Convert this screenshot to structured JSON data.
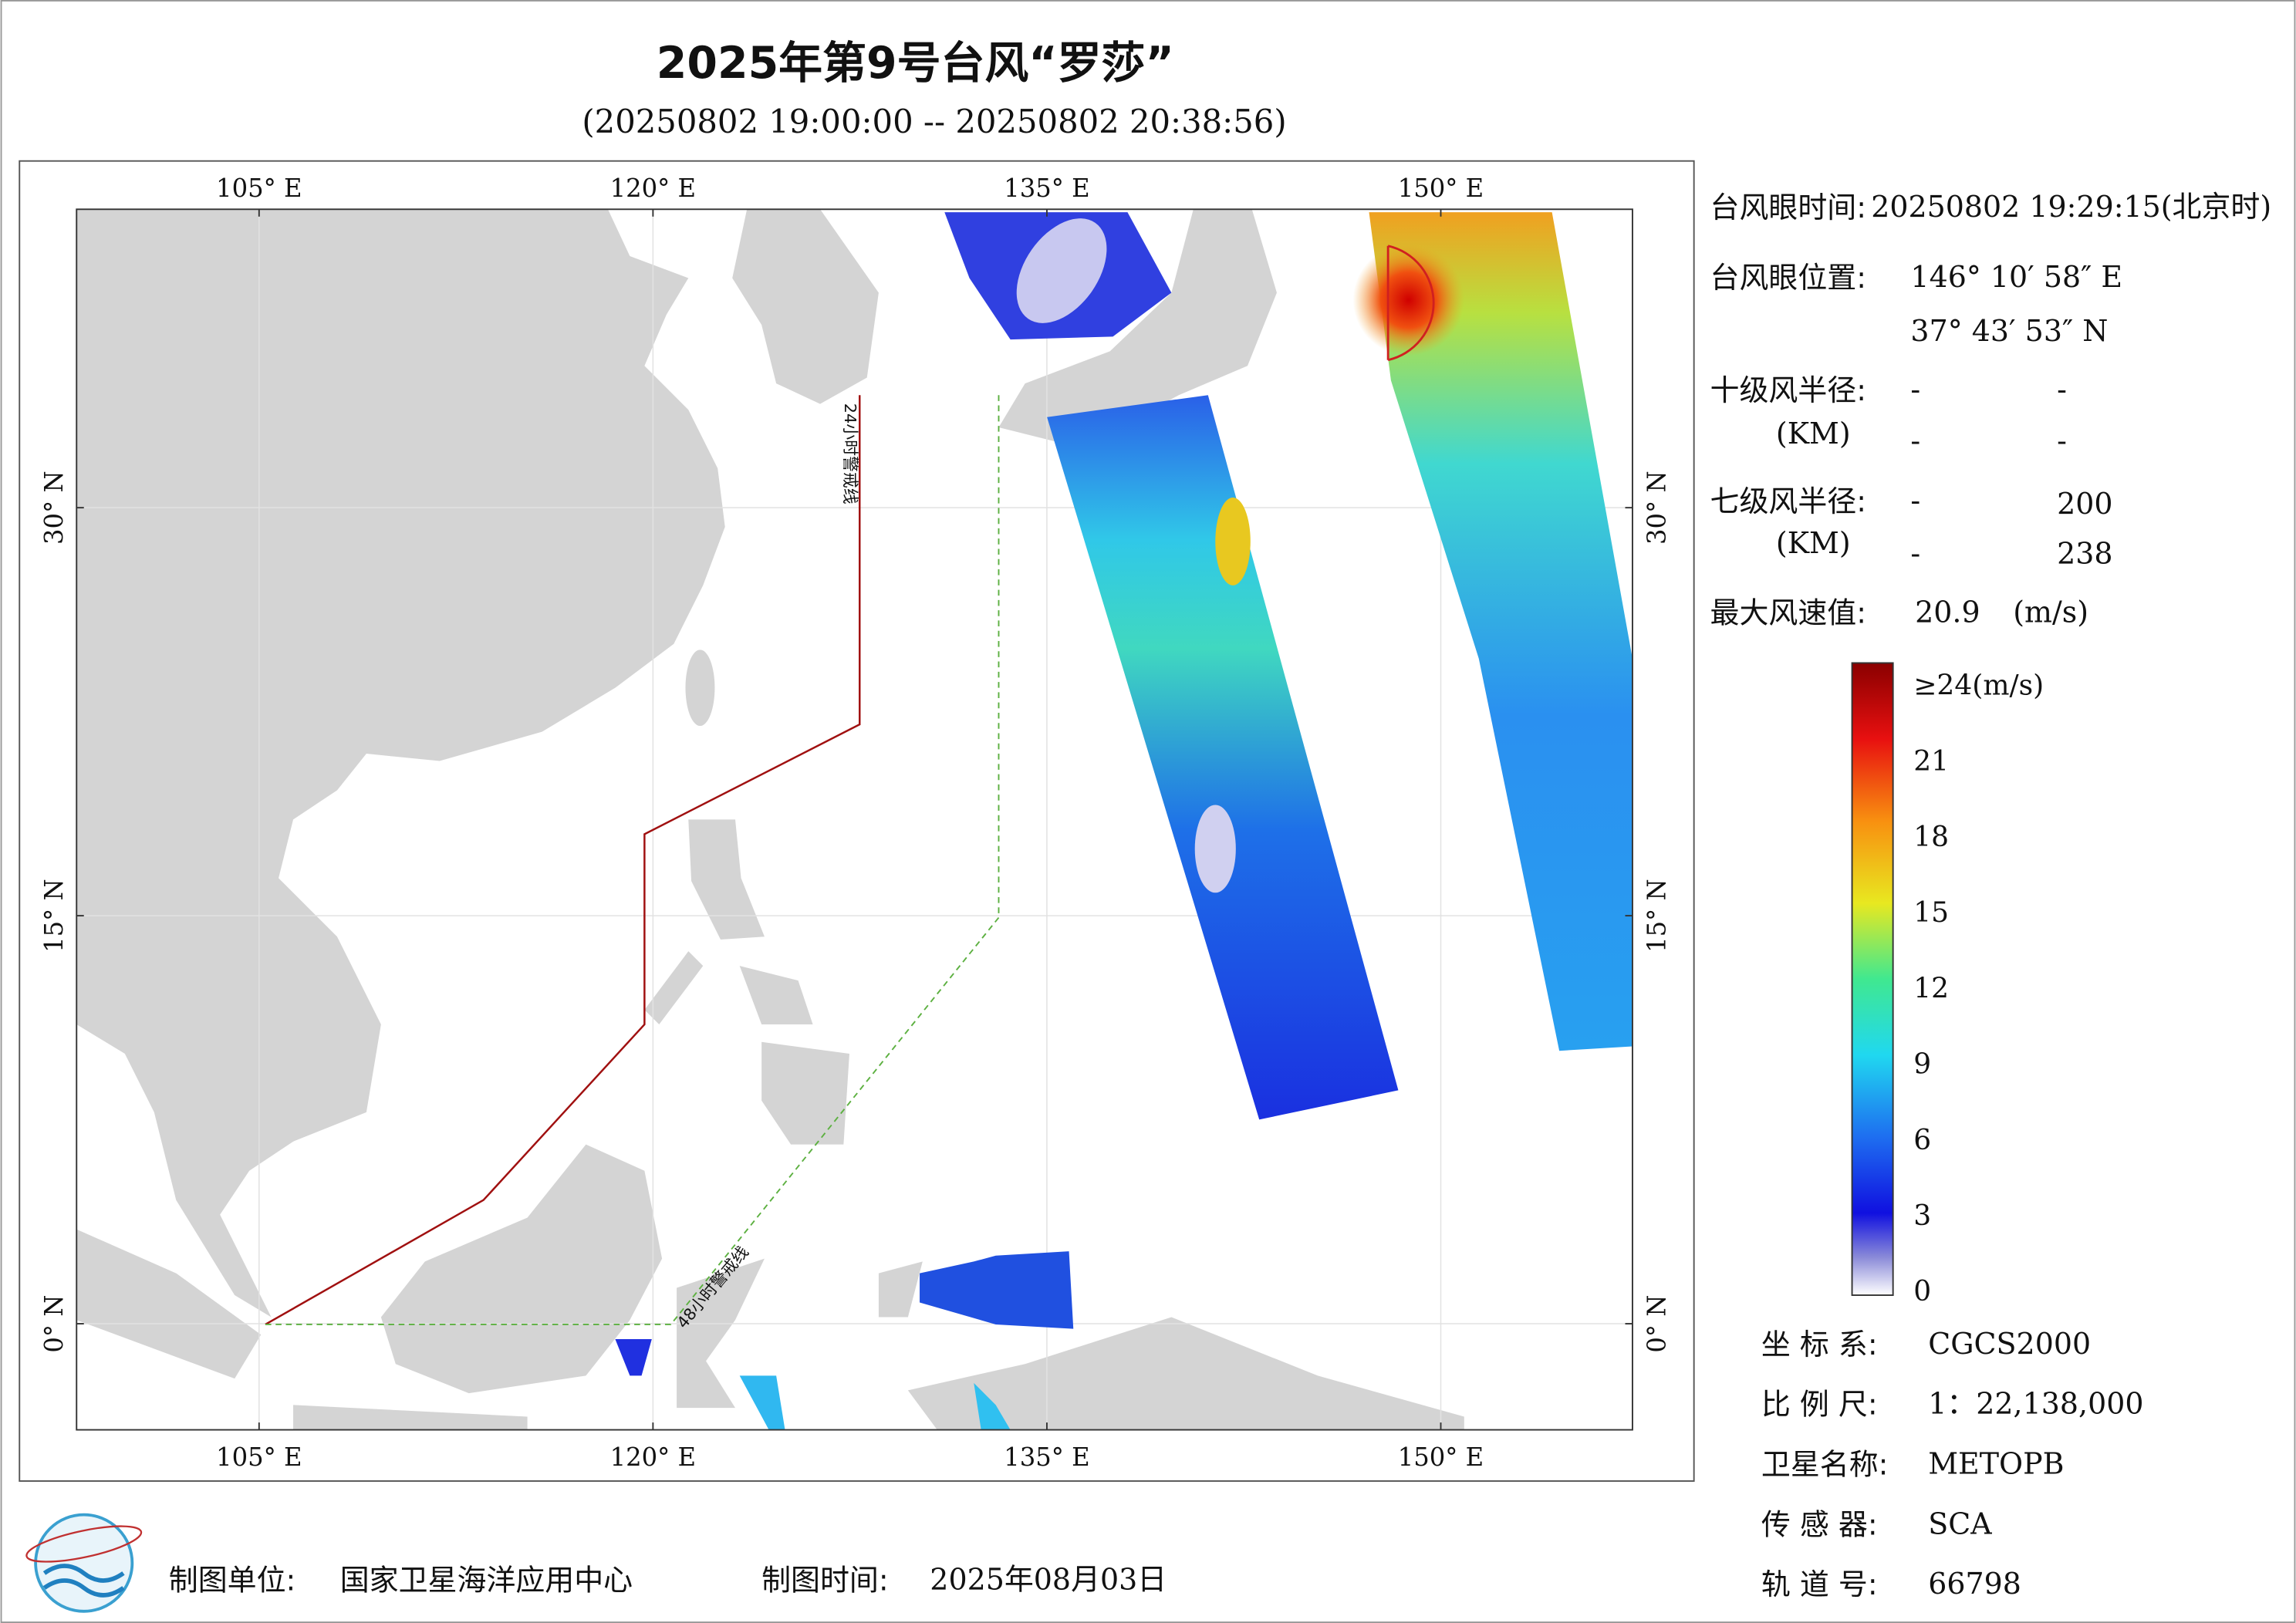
{
  "header": {
    "title": "2025年第9号台风“罗莎”",
    "subtitle": "(20250802 19:00:00 -- 20250802 20:38:56)"
  },
  "map": {
    "lonlim": [
      98.05,
      157.3
    ],
    "latlim": [
      -3.9,
      40.97
    ],
    "lonticks": [
      {
        "value": 105,
        "label": "105° E"
      },
      {
        "value": 120,
        "label": "120° E"
      },
      {
        "value": 135,
        "label": "135° E"
      },
      {
        "value": 150,
        "label": "150° E"
      }
    ],
    "latticks": [
      {
        "value": 30,
        "label": "30° N"
      },
      {
        "value": 15,
        "label": "15° N"
      },
      {
        "value": 0,
        "label": "0° N"
      }
    ],
    "warning_lines": [
      "24小时警戒线",
      "48小时警戒线"
    ]
  },
  "info": {
    "eye_time": {
      "label": "台风眼时间:",
      "value": "20250802 19:29:15(北京时)"
    },
    "eye_position": {
      "label": "台风眼位置:",
      "lon": "146° 10′ 58″ E",
      "lat": "37° 43′ 53″ N"
    },
    "radius_10": {
      "label": "十级风半径:",
      "unit": "(KM)",
      "values": [
        [
          "-",
          "-"
        ],
        [
          "-",
          "-"
        ]
      ]
    },
    "radius_7": {
      "label": "七级风半径:",
      "unit": "(KM)",
      "values": [
        [
          "-",
          "200"
        ],
        [
          "-",
          "238"
        ]
      ]
    },
    "max_wind": {
      "label": "最大风速值:",
      "value": "20.9",
      "unit": "(m/s)"
    }
  },
  "colorbar": {
    "range": [
      0,
      24
    ],
    "ticks": [
      {
        "value": 24,
        "label": "≥24(m/s)"
      },
      21,
      18,
      15,
      12,
      9,
      6,
      3,
      0
    ]
  },
  "metadata": [
    {
      "label": "坐 标 系:",
      "value": "CGCS2000"
    },
    {
      "label": "比 例 尺:",
      "value": "1：22,138,000"
    },
    {
      "label": "卫星名称:",
      "value": "METOPB"
    },
    {
      "label": "传 感 器:",
      "value": "SCA"
    },
    {
      "label": "轨 道 号:",
      "value": "66798"
    }
  ],
  "footer": {
    "unit_label": "制图单位:",
    "unit": "国家卫星海洋应用中心",
    "time_label": "制图时间:",
    "time": "2025年08月03日"
  }
}
